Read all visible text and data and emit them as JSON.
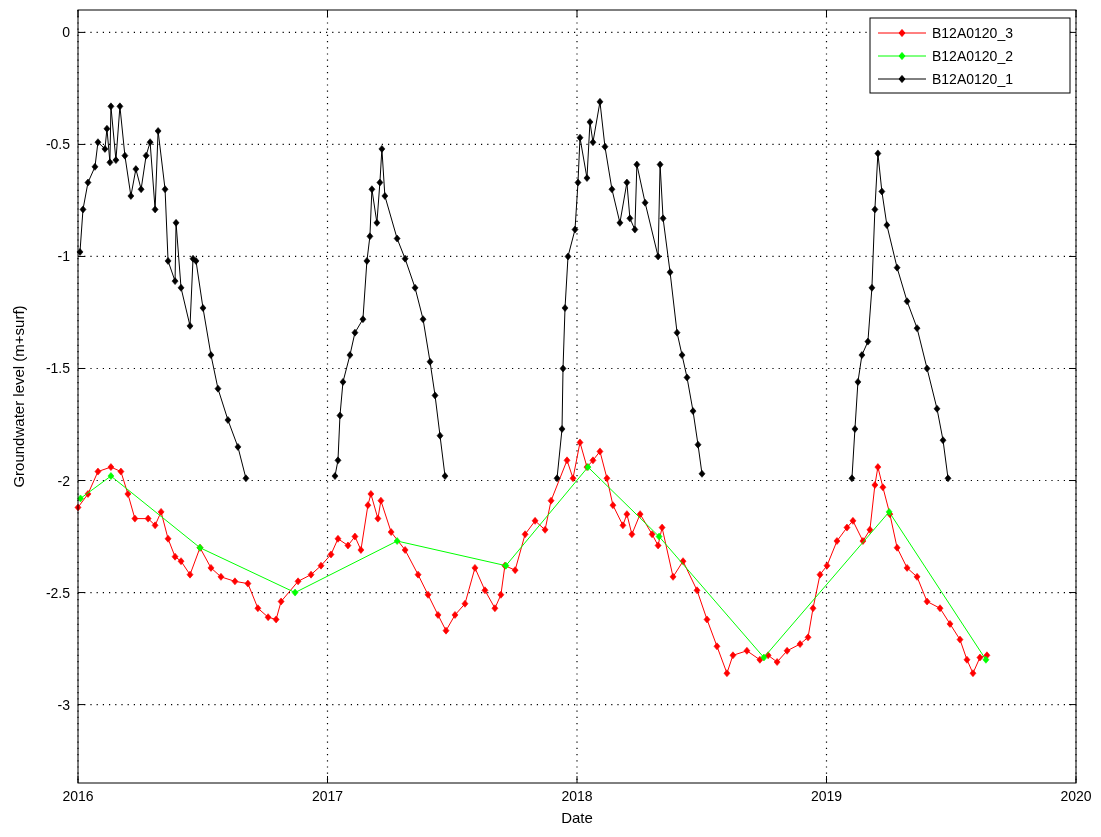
{
  "chart_data": {
    "type": "line",
    "xlabel": "Date",
    "ylabel": "Groundwater level (m+surf)",
    "xlim": [
      2016,
      2020
    ],
    "ylim": [
      -3.35,
      0.1
    ],
    "xticks": [
      2016,
      2017,
      2018,
      2019,
      2020
    ],
    "yticks": [
      -3,
      -2.5,
      -2,
      -1.5,
      -1,
      -0.5,
      0
    ],
    "grid": true,
    "legend": "top right",
    "marker": "diamond",
    "line_style": "solid",
    "series": [
      {
        "name": "B12A0120_3",
        "color": "#ff0000",
        "x": [
          2016.0,
          2016.04,
          2016.08,
          2016.132,
          2016.172,
          2016.2,
          2016.228,
          2016.281,
          2016.309,
          2016.333,
          2016.361,
          2016.389,
          2016.413,
          2016.449,
          2016.489,
          2016.533,
          2016.573,
          2016.629,
          2016.681,
          2016.721,
          2016.762,
          2016.794,
          2016.814,
          2016.882,
          2016.934,
          2016.974,
          2017.014,
          2017.042,
          2017.082,
          2017.11,
          2017.134,
          2017.162,
          2017.174,
          2017.202,
          2017.214,
          2017.255,
          2017.311,
          2017.363,
          2017.403,
          2017.443,
          2017.475,
          2017.511,
          2017.551,
          2017.591,
          2017.631,
          2017.671,
          2017.695,
          2017.711,
          2017.752,
          2017.792,
          2017.832,
          2017.872,
          2017.896,
          2017.96,
          2017.984,
          2018.012,
          2018.04,
          2018.064,
          2018.092,
          2018.12,
          2018.144,
          2018.184,
          2018.2,
          2018.22,
          2018.253,
          2018.301,
          2018.325,
          2018.341,
          2018.385,
          2018.425,
          2018.481,
          2018.521,
          2018.561,
          2018.601,
          2018.625,
          2018.681,
          2018.733,
          2018.766,
          2018.802,
          2018.842,
          2018.894,
          2018.926,
          2018.946,
          2018.974,
          2019.002,
          2019.042,
          2019.082,
          2019.106,
          2019.146,
          2019.174,
          2019.194,
          2019.206,
          2019.226,
          2019.254,
          2019.283,
          2019.323,
          2019.363,
          2019.403,
          2019.455,
          2019.495,
          2019.535,
          2019.563,
          2019.587,
          2019.615,
          2019.643
        ],
        "values": [
          -2.12,
          -2.06,
          -1.96,
          -1.94,
          -1.96,
          -2.06,
          -2.17,
          -2.17,
          -2.2,
          -2.14,
          -2.26,
          -2.34,
          -2.36,
          -2.42,
          -2.3,
          -2.39,
          -2.43,
          -2.45,
          -2.46,
          -2.57,
          -2.61,
          -2.62,
          -2.54,
          -2.45,
          -2.42,
          -2.38,
          -2.33,
          -2.26,
          -2.29,
          -2.25,
          -2.31,
          -2.11,
          -2.06,
          -2.17,
          -2.09,
          -2.23,
          -2.31,
          -2.42,
          -2.51,
          -2.6,
          -2.67,
          -2.6,
          -2.55,
          -2.39,
          -2.49,
          -2.57,
          -2.51,
          -2.38,
          -2.4,
          -2.24,
          -2.18,
          -2.22,
          -2.09,
          -1.91,
          -1.99,
          -1.83,
          -1.94,
          -1.91,
          -1.87,
          -1.99,
          -2.11,
          -2.2,
          -2.15,
          -2.24,
          -2.15,
          -2.24,
          -2.29,
          -2.21,
          -2.43,
          -2.36,
          -2.49,
          -2.62,
          -2.74,
          -2.86,
          -2.78,
          -2.76,
          -2.8,
          -2.78,
          -2.81,
          -2.76,
          -2.73,
          -2.7,
          -2.57,
          -2.42,
          -2.38,
          -2.27,
          -2.21,
          -2.18,
          -2.27,
          -2.22,
          -2.02,
          -1.94,
          -2.03,
          -2.15,
          -2.3,
          -2.39,
          -2.43,
          -2.54,
          -2.57,
          -2.64,
          -2.71,
          -2.8,
          -2.86,
          -2.79,
          -2.78
        ]
      },
      {
        "name": "B12A0120_2",
        "color": "#00ff00",
        "x": [
          2016.01,
          2016.132,
          2016.489,
          2016.87,
          2017.279,
          2017.715,
          2018.044,
          2018.329,
          2018.749,
          2019.251,
          2019.639
        ],
        "values": [
          -2.08,
          -1.98,
          -2.3,
          -2.5,
          -2.27,
          -2.38,
          -1.94,
          -2.25,
          -2.79,
          -2.14,
          -2.8
        ]
      },
      {
        "name": "B12A0120_1",
        "color": "#000000",
        "x": [
          2016.008,
          2016.02,
          2016.04,
          2016.068,
          2016.08,
          2016.108,
          2016.116,
          2016.128,
          2016.132,
          2016.152,
          2016.168,
          2016.188,
          2016.212,
          2016.232,
          2016.253,
          2016.273,
          2016.289,
          2016.309,
          2016.321,
          2016.349,
          2016.361,
          2016.389,
          2016.393,
          2016.413,
          2016.449,
          2016.461,
          2016.473,
          2016.501,
          2016.533,
          2016.561,
          2016.601,
          2016.641,
          2016.673,
          2016.9,
          2017.03,
          2017.042,
          2017.05,
          2017.062,
          2017.09,
          2017.11,
          2017.142,
          2017.158,
          2017.17,
          2017.178,
          2017.198,
          2017.21,
          2017.218,
          2017.23,
          2017.279,
          2017.311,
          2017.351,
          2017.383,
          2017.411,
          2017.431,
          2017.451,
          2017.471,
          2017.7,
          2017.92,
          2017.94,
          2017.944,
          2017.952,
          2017.964,
          2017.992,
          2018.004,
          2018.012,
          2018.04,
          2018.052,
          2018.064,
          2018.092,
          2018.112,
          2018.14,
          2018.172,
          2018.2,
          2018.212,
          2018.232,
          2018.24,
          2018.273,
          2018.325,
          2018.333,
          2018.345,
          2018.373,
          2018.401,
          2018.421,
          2018.441,
          2018.465,
          2018.485,
          2018.501,
          2018.8,
          2019.102,
          2019.114,
          2019.126,
          2019.142,
          2019.166,
          2019.182,
          2019.194,
          2019.206,
          2019.222,
          2019.242,
          2019.283,
          2019.323,
          2019.363,
          2019.403,
          2019.443,
          2019.467,
          2019.487
        ],
        "values": [
          -0.98,
          -0.79,
          -0.67,
          -0.6,
          -0.49,
          -0.52,
          -0.43,
          -0.58,
          -0.33,
          -0.57,
          -0.33,
          -0.55,
          -0.73,
          -0.61,
          -0.7,
          -0.55,
          -0.49,
          -0.79,
          -0.44,
          -0.7,
          -1.02,
          -1.11,
          -0.85,
          -1.14,
          -1.31,
          -1.01,
          -1.02,
          -1.23,
          -1.44,
          -1.59,
          -1.73,
          -1.85,
          -1.99,
          null,
          -1.98,
          -1.91,
          -1.71,
          -1.56,
          -1.44,
          -1.34,
          -1.28,
          -1.02,
          -0.91,
          -0.7,
          -0.85,
          -0.67,
          -0.52,
          -0.73,
          -0.92,
          -1.01,
          -1.14,
          -1.28,
          -1.47,
          -1.62,
          -1.8,
          -1.98,
          null,
          -1.99,
          -1.77,
          -1.5,
          -1.23,
          -1.0,
          -0.88,
          -0.67,
          -0.47,
          -0.65,
          -0.4,
          -0.49,
          -0.31,
          -0.51,
          -0.7,
          -0.85,
          -0.67,
          -0.83,
          -0.88,
          -0.59,
          -0.76,
          -1.0,
          -0.59,
          -0.83,
          -1.07,
          -1.34,
          -1.44,
          -1.54,
          -1.69,
          -1.84,
          -1.97,
          null,
          -1.99,
          -1.77,
          -1.56,
          -1.44,
          -1.38,
          -1.14,
          -0.79,
          -0.54,
          -0.71,
          -0.86,
          -1.05,
          -1.2,
          -1.32,
          -1.5,
          -1.68,
          -1.82,
          -1.99
        ]
      }
    ]
  }
}
